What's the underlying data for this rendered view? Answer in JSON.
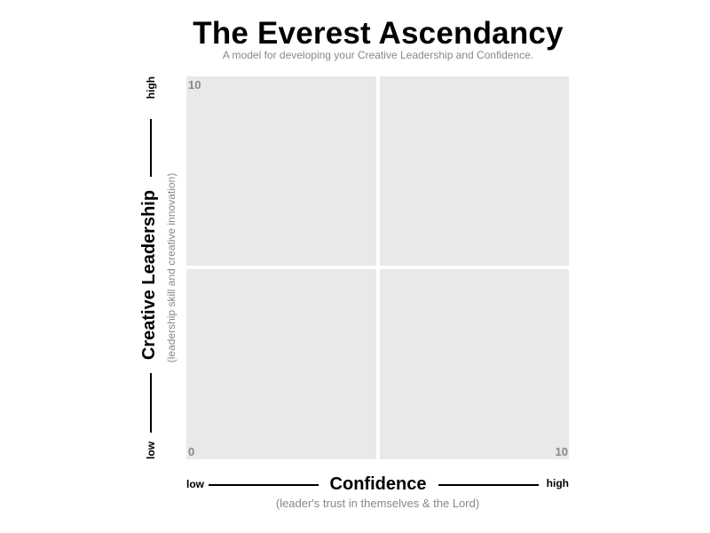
{
  "header": {
    "title": "The Everest Ascendancy",
    "subtitle": "A model for developing your Creative Leadership and Confidence."
  },
  "matrix": {
    "y_max_label": "10",
    "origin_label": "0",
    "x_max_label": "10",
    "quadrant_color": "#e9e9e9"
  },
  "x_axis": {
    "low": "low",
    "label": "Confidence",
    "high": "high",
    "sublabel": "(leader's trust in themselves & the Lord)"
  },
  "y_axis": {
    "low": "low",
    "label": "Creative Leadership",
    "high": "high",
    "sublabel": "(leadership skill and creative innovation)"
  }
}
